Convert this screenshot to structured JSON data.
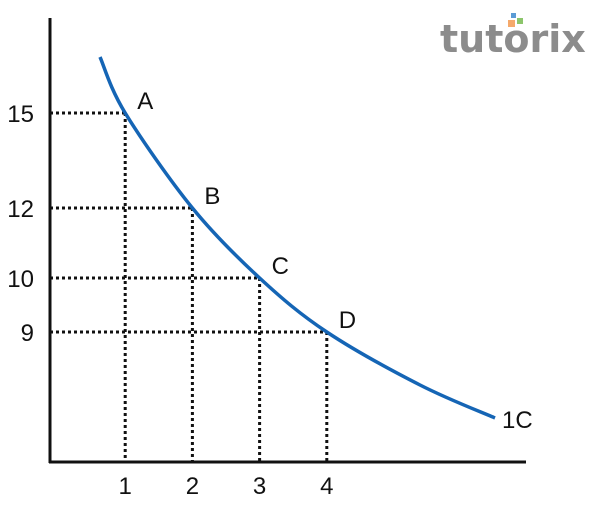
{
  "chart_data": {
    "type": "line",
    "title": "",
    "xlabel": "",
    "ylabel": "",
    "x_ticks": [
      "1",
      "2",
      "3",
      "4"
    ],
    "y_ticks": [
      "15",
      "12",
      "10",
      "9"
    ],
    "points": [
      {
        "label": "A",
        "x": 1,
        "y": 15
      },
      {
        "label": "B",
        "x": 2,
        "y": 12
      },
      {
        "label": "C",
        "x": 3,
        "y": 10
      },
      {
        "label": "D",
        "x": 4,
        "y": 9
      }
    ],
    "curve_label": "1C",
    "grid": "dotted guide lines to each point",
    "colors": {
      "curve": "#1565b5",
      "axes": "#111111",
      "guides": "#111111"
    }
  },
  "logo": {
    "text": "tutorix",
    "colors": {
      "text": "#8c8c8c",
      "dot_orange": "#f5a96b",
      "dot_blue": "#5b9bd5",
      "dot_green": "#8cc56b"
    }
  }
}
